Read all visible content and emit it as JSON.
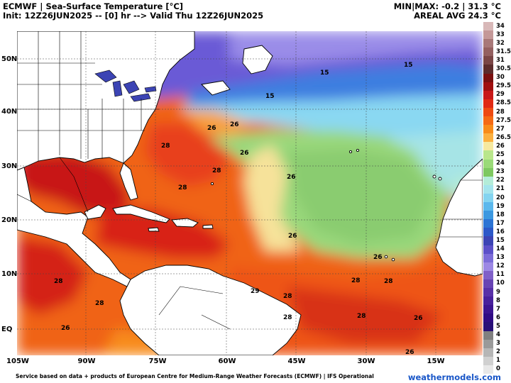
{
  "header": {
    "title": "ECMWF | Sea-Surface Temperature [°C]",
    "init": "Init: 12Z26JUN2025 -- [0] hr --> Valid Thu 12Z26JUN2025",
    "minmax": "MIN|MAX: -0.2 | 31.3 °C",
    "areal_avg": "AREAL AVG 24.3 °C"
  },
  "axes": {
    "lat_labels": [
      "50N",
      "40N",
      "30N",
      "20N",
      "10N",
      "EQ"
    ],
    "lon_labels": [
      "105W",
      "90W",
      "75W",
      "60W",
      "45W",
      "30W",
      "15W"
    ]
  },
  "colorbar": {
    "labels": [
      "34",
      "33",
      "32",
      "31.5",
      "31",
      "30.5",
      "30",
      "29.5",
      "29",
      "28.5",
      "28",
      "27.5",
      "27",
      "26.5",
      "26",
      "25",
      "24",
      "23",
      "22",
      "21",
      "20",
      "19",
      "18",
      "17",
      "16",
      "15",
      "14",
      "13",
      "12",
      "11",
      "10",
      "9",
      "8",
      "7",
      "6",
      "5",
      "4",
      "3",
      "2",
      "1",
      "0"
    ],
    "colors": [
      "#d8b8b8",
      "#c49898",
      "#a87878",
      "#946060",
      "#7a4646",
      "#5c2c2c",
      "#7a1010",
      "#a01010",
      "#c81818",
      "#e02a14",
      "#ee4a12",
      "#f56a14",
      "#f88c1a",
      "#fbb040",
      "#f6e9a0",
      "#b9e68c",
      "#9ada78",
      "#7ec860",
      "#b4ecd8",
      "#a4e4ec",
      "#84d4f0",
      "#5cb8ec",
      "#3c98e0",
      "#2c74d4",
      "#2c58c8",
      "#3c44b4",
      "#5c50c8",
      "#7c6cd8",
      "#9c88e4",
      "#8060c8",
      "#6844b4",
      "#5830a8",
      "#48209c",
      "#3c1490",
      "#300c84",
      "#281078",
      "#808080",
      "#9a9a9a",
      "#b6b6b6",
      "#d0d0d0",
      "#e8e8e8"
    ]
  },
  "contour_labels": [
    {
      "text": "15"
    },
    {
      "text": "15"
    },
    {
      "text": "15"
    },
    {
      "text": "26"
    },
    {
      "text": "26"
    },
    {
      "text": "28"
    },
    {
      "text": "26"
    },
    {
      "text": "28"
    },
    {
      "text": "28"
    },
    {
      "text": "26"
    },
    {
      "text": "26"
    },
    {
      "text": "26"
    },
    {
      "text": "28"
    },
    {
      "text": "28"
    },
    {
      "text": "28"
    },
    {
      "text": "29"
    },
    {
      "text": "28"
    },
    {
      "text": "28"
    },
    {
      "text": "28"
    },
    {
      "text": "28"
    },
    {
      "text": "26"
    },
    {
      "text": "26"
    },
    {
      "text": "26"
    }
  ],
  "credit": "Service based on data + products of European Centre for Medium-Range Weather Forecasts (ECMWF) | IFS Operational",
  "brand": "weathermodels.com"
}
